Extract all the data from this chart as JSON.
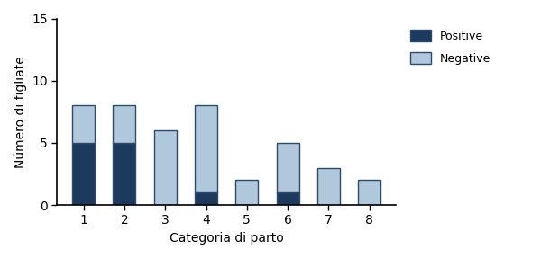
{
  "categories": [
    1,
    2,
    3,
    4,
    5,
    6,
    7,
    8
  ],
  "positive": [
    5,
    5,
    0,
    1,
    0,
    1,
    0,
    0
  ],
  "negative": [
    3,
    3,
    6,
    7,
    2,
    4,
    3,
    2
  ],
  "positive_color": "#1b3a5e",
  "negative_color": "#b0c8dc",
  "ylabel": "Número di figliate",
  "xlabel": "Categoria di parto",
  "ylim": [
    0,
    15
  ],
  "yticks": [
    0,
    5,
    10,
    15
  ],
  "legend_positive": "Positive",
  "legend_negative": "Negative",
  "bar_width": 0.55,
  "bar_edge_color": "#2c4a6e",
  "bar_linewidth": 1.0
}
